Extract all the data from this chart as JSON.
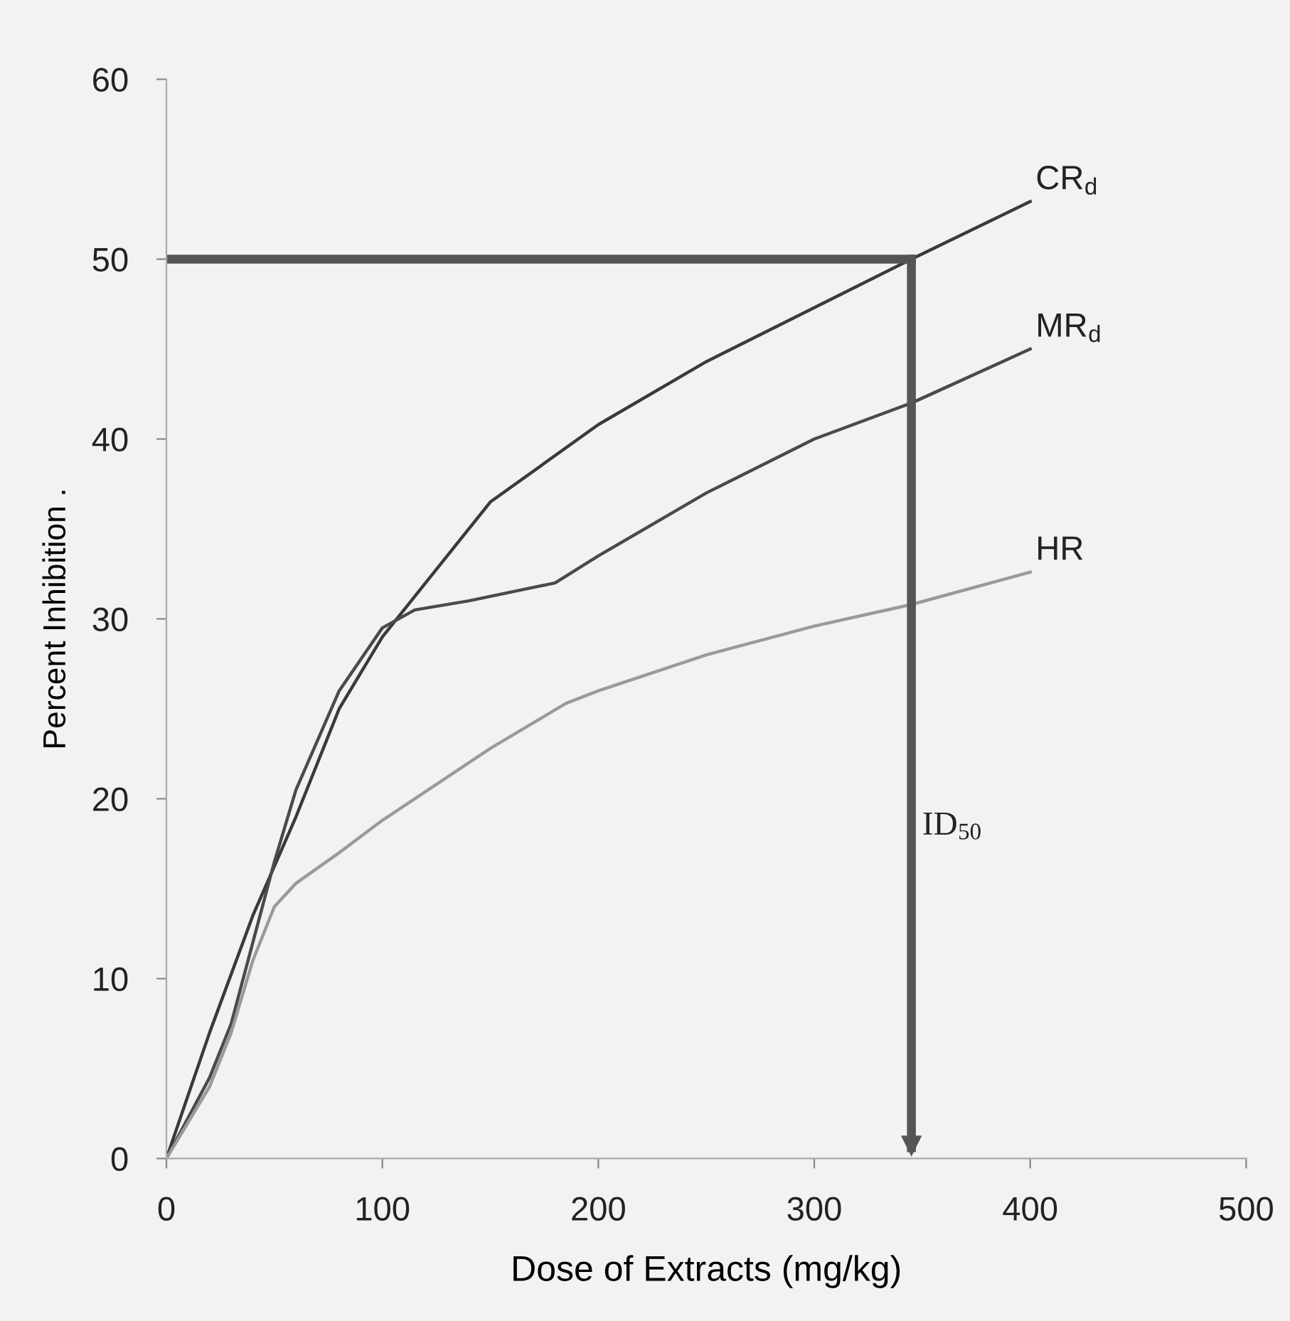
{
  "chart_data": {
    "type": "line",
    "xlabel": "Dose of Extracts (mg/kg)",
    "ylabel": "Percent Inhibition .",
    "xlim": [
      0,
      500
    ],
    "ylim": [
      0,
      60
    ],
    "xticks": [
      0,
      100,
      200,
      300,
      400,
      500
    ],
    "yticks": [
      0,
      10,
      20,
      30,
      40,
      50,
      60
    ],
    "grid": false,
    "legend": false,
    "marker": "none",
    "line_style": "solid",
    "series": [
      {
        "name": "CR$_{d}$",
        "color": "#3a3a3a",
        "x": [
          0,
          20,
          40,
          60,
          80,
          100,
          120,
          150,
          200,
          250,
          300,
          345,
          400
        ],
        "values": [
          0,
          7,
          13.5,
          19,
          25,
          29,
          32,
          36.5,
          40.8,
          44.3,
          47.3,
          50,
          53.2
        ]
      },
      {
        "name": "MR$_{d}$",
        "color": "#4a4a4a",
        "x": [
          0,
          20,
          30,
          40,
          50,
          60,
          80,
          100,
          115,
          140,
          180,
          200,
          250,
          300,
          345,
          400
        ],
        "values": [
          0,
          4.5,
          7.5,
          12,
          16.5,
          20.5,
          26,
          29.5,
          30.5,
          31,
          32,
          33.5,
          37,
          40,
          42,
          45
        ]
      },
      {
        "name": "HR",
        "color": "#9a9a9a",
        "x": [
          0,
          20,
          30,
          40,
          50,
          60,
          80,
          100,
          150,
          185,
          200,
          250,
          300,
          345,
          400
        ],
        "values": [
          0,
          4,
          7,
          11,
          14,
          15.3,
          17,
          18.8,
          22.8,
          25.3,
          26,
          28,
          29.6,
          30.8,
          32.6
        ]
      }
    ],
    "ref_lines": [
      {
        "axis": "y",
        "value": 50,
        "label": null,
        "color": "#555555"
      },
      {
        "axis": "x",
        "value": 345,
        "label": "ID$_{50}$",
        "color": "#555555"
      }
    ]
  }
}
